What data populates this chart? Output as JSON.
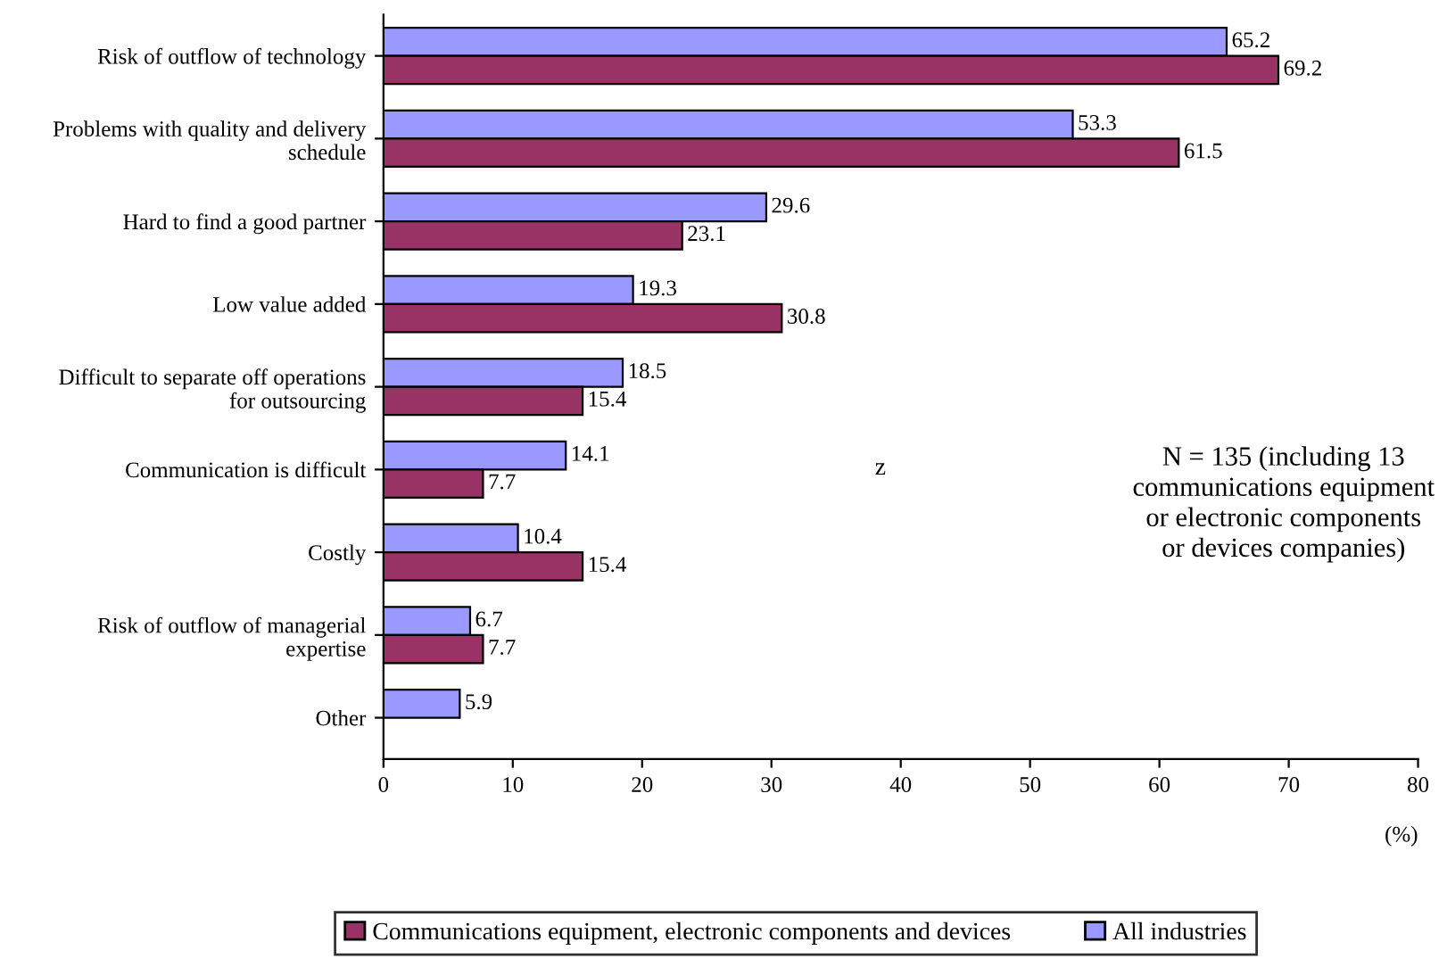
{
  "chart_data": {
    "type": "bar",
    "orientation": "horizontal",
    "categories": [
      "Risk of outflow of technology",
      "Problems with quality and delivery\nschedule",
      "Hard to find a good partner",
      "Low value added",
      "Difficult to separate off operations\nfor outsourcing",
      "Communication is difficult",
      "Costly",
      "Risk of outflow of managerial\nexpertise",
      "Other"
    ],
    "series": [
      {
        "name": "All industries",
        "color": "#9999ff",
        "values": [
          65.2,
          53.3,
          29.6,
          19.3,
          18.5,
          14.1,
          10.4,
          6.7,
          5.9
        ]
      },
      {
        "name": "Communications equipment, electronic components and devices",
        "color": "#993366",
        "values": [
          69.2,
          61.5,
          23.1,
          30.8,
          15.4,
          7.7,
          15.4,
          7.7,
          null
        ]
      }
    ],
    "xlim": [
      0,
      80
    ],
    "xticks": [
      0,
      10,
      20,
      30,
      40,
      50,
      60,
      70,
      80
    ],
    "xlabel": "(%)",
    "data_labels": true,
    "legend": "bottom",
    "grid": false,
    "annotations": [
      "N = 135 (including 13\ncommunications equipment\nor electronic components\nor devices companies)",
      "z"
    ]
  }
}
